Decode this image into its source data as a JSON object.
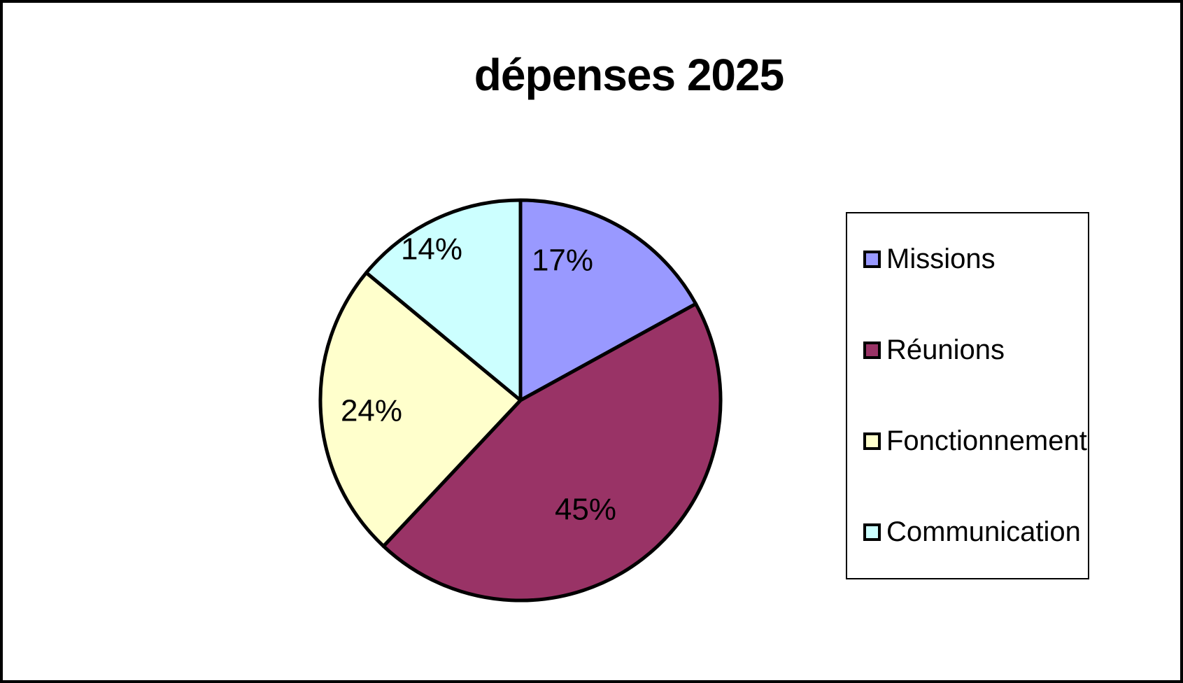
{
  "chart_data": {
    "type": "pie",
    "title": "dépenses 2025",
    "direction": "clockwise",
    "start_angle_deg": 0,
    "data_labels": "percent",
    "legend_position": "right",
    "series": [
      {
        "label": "Missions",
        "value": 17,
        "data_label": "17%",
        "color": "#9999FF"
      },
      {
        "label": "Réunions",
        "value": 45,
        "data_label": "45%",
        "color": "#993366"
      },
      {
        "label": "Fonctionnement",
        "value": 24,
        "data_label": "24%",
        "color": "#FFFFCC"
      },
      {
        "label": "Communication",
        "value": 14,
        "data_label": "14%",
        "color": "#CCFFFF"
      }
    ],
    "stroke_color": "#000000",
    "background_color": "#FFFFFF"
  }
}
